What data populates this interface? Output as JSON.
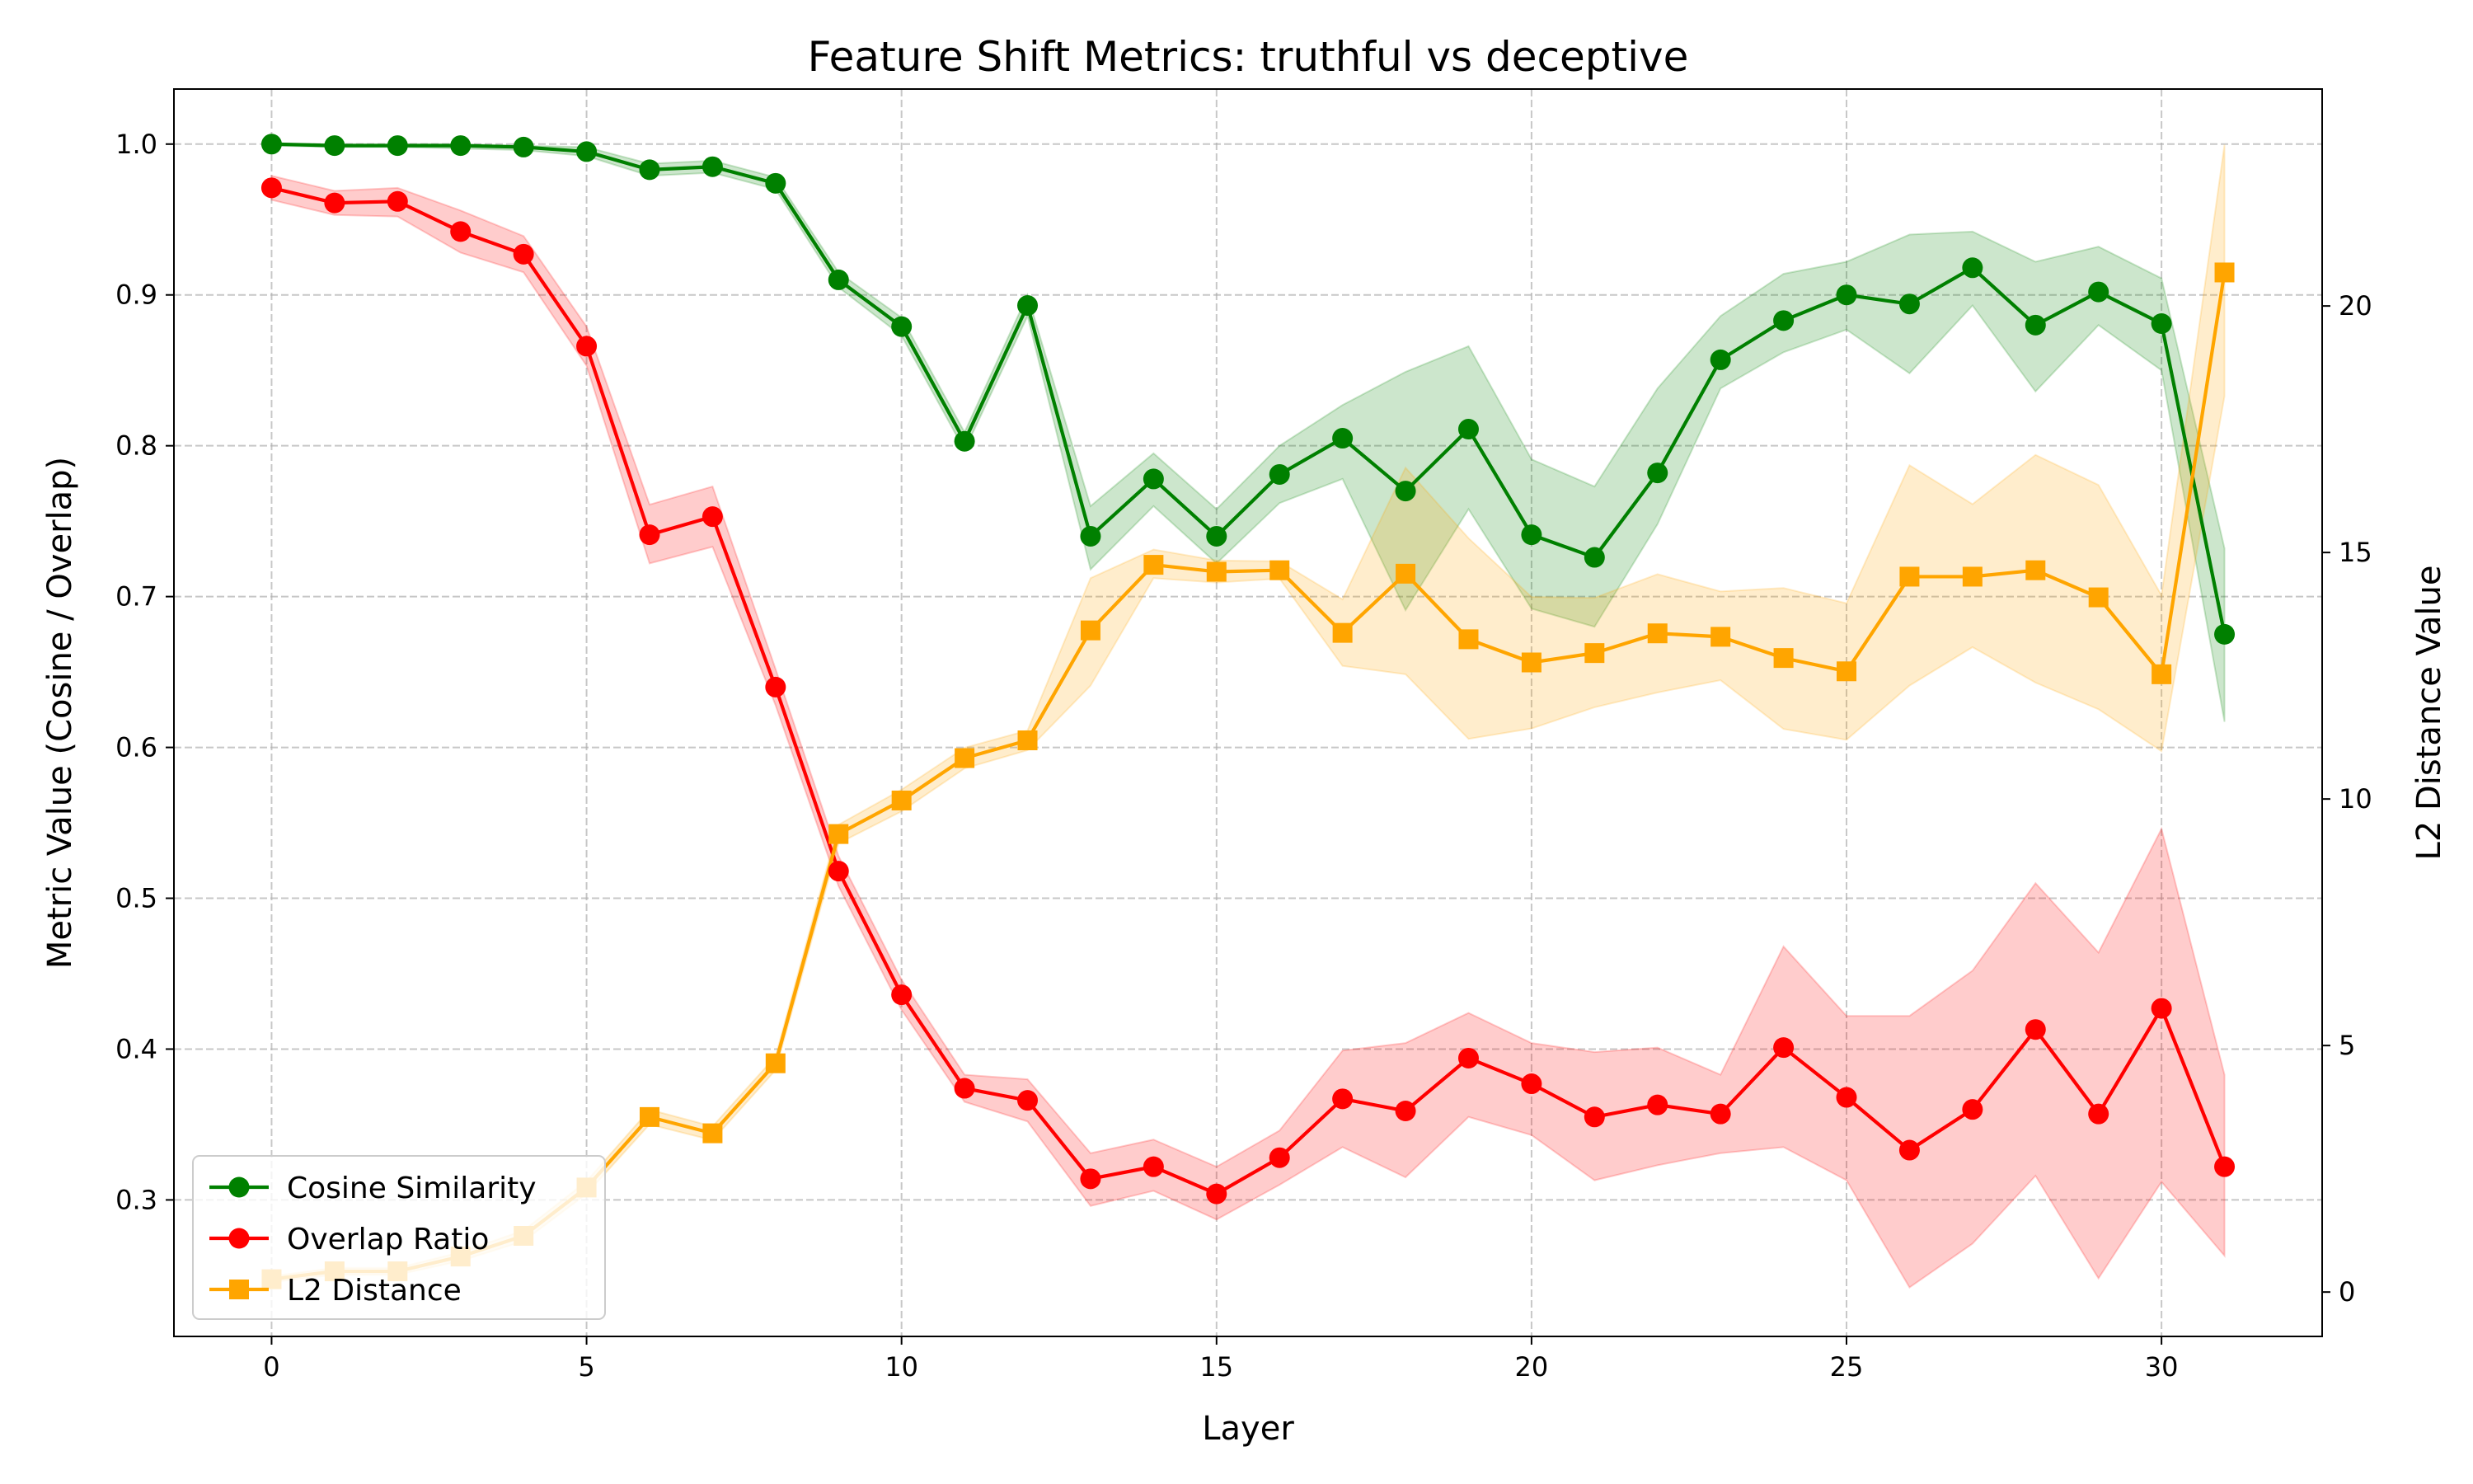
{
  "chart_data": {
    "type": "line",
    "title": "Feature Shift Metrics: truthful vs deceptive",
    "xlabel": "Layer",
    "ylabel": "Metric Value (Cosine / Overlap)",
    "y2label": "L2 Distance Value",
    "xlim": [
      -1.55,
      32.55
    ],
    "ylim": [
      0.2095,
      1.0365
    ],
    "y2lim": [
      -0.9,
      24.4
    ],
    "xticks": [
      0,
      5,
      10,
      15,
      20,
      25,
      30
    ],
    "yticks": [
      0.3,
      0.4,
      0.5,
      0.6,
      0.7,
      0.8,
      0.9,
      1.0
    ],
    "y2ticks": [
      0,
      5,
      10,
      15,
      20
    ],
    "grid": true,
    "legend_position": "lower-left",
    "x": [
      0,
      1,
      2,
      3,
      4,
      5,
      6,
      7,
      8,
      9,
      10,
      11,
      12,
      13,
      14,
      15,
      16,
      17,
      18,
      19,
      20,
      21,
      22,
      23,
      24,
      25,
      26,
      27,
      28,
      29,
      30,
      31
    ],
    "series": [
      {
        "name": "Cosine Similarity",
        "axis": "left",
        "color": "#008000",
        "marker": "circle",
        "values": [
          1.0,
          0.999,
          0.999,
          0.999,
          0.998,
          0.995,
          0.983,
          0.985,
          0.974,
          0.91,
          0.879,
          0.803,
          0.893,
          0.74,
          0.778,
          0.74,
          0.781,
          0.805,
          0.77,
          0.811,
          0.741,
          0.726,
          0.782,
          0.857,
          0.883,
          0.9,
          0.894,
          0.918,
          0.88,
          0.902,
          0.881,
          0.675
        ],
        "lower": [
          0.999,
          0.998,
          0.998,
          0.997,
          0.996,
          0.992,
          0.979,
          0.981,
          0.97,
          0.905,
          0.873,
          0.797,
          0.886,
          0.718,
          0.76,
          0.722,
          0.762,
          0.778,
          0.691,
          0.758,
          0.692,
          0.68,
          0.748,
          0.838,
          0.862,
          0.877,
          0.848,
          0.893,
          0.836,
          0.88,
          0.85,
          0.617
        ],
        "upper": [
          1.0,
          1.0,
          1.0,
          1.0,
          0.999,
          0.998,
          0.987,
          0.989,
          0.978,
          0.915,
          0.885,
          0.809,
          0.9,
          0.76,
          0.795,
          0.758,
          0.8,
          0.827,
          0.849,
          0.866,
          0.791,
          0.773,
          0.838,
          0.886,
          0.914,
          0.922,
          0.94,
          0.942,
          0.922,
          0.932,
          0.911,
          0.732
        ]
      },
      {
        "name": "Overlap Ratio",
        "axis": "left",
        "color": "#ff0000",
        "marker": "circle",
        "values": [
          0.971,
          0.961,
          0.962,
          0.942,
          0.927,
          0.866,
          0.741,
          0.753,
          0.64,
          0.518,
          0.436,
          0.374,
          0.366,
          0.314,
          0.322,
          0.304,
          0.328,
          0.367,
          0.359,
          0.394,
          0.377,
          0.355,
          0.363,
          0.357,
          0.401,
          0.368,
          0.333,
          0.36,
          0.413,
          0.357,
          0.427,
          0.322
        ],
        "lower": [
          0.963,
          0.953,
          0.952,
          0.928,
          0.915,
          0.853,
          0.722,
          0.733,
          0.628,
          0.508,
          0.426,
          0.365,
          0.352,
          0.296,
          0.306,
          0.287,
          0.31,
          0.335,
          0.315,
          0.355,
          0.343,
          0.313,
          0.323,
          0.331,
          0.335,
          0.313,
          0.242,
          0.271,
          0.316,
          0.248,
          0.312,
          0.263
        ],
        "upper": [
          0.979,
          0.969,
          0.971,
          0.956,
          0.939,
          0.879,
          0.761,
          0.773,
          0.652,
          0.528,
          0.446,
          0.383,
          0.38,
          0.331,
          0.34,
          0.322,
          0.346,
          0.399,
          0.404,
          0.424,
          0.404,
          0.398,
          0.401,
          0.383,
          0.468,
          0.422,
          0.422,
          0.452,
          0.51,
          0.464,
          0.546,
          0.383
        ]
      },
      {
        "name": "L2 Distance",
        "axis": "right",
        "color": "#ffa500",
        "marker": "square",
        "values": [
          0.26,
          0.42,
          0.42,
          0.72,
          1.14,
          2.12,
          3.55,
          3.22,
          4.64,
          9.29,
          9.97,
          10.83,
          11.19,
          13.42,
          14.75,
          14.61,
          14.64,
          13.37,
          14.57,
          13.24,
          12.77,
          12.96,
          13.36,
          13.29,
          12.86,
          12.59,
          14.51,
          14.51,
          14.64,
          14.09,
          12.53,
          20.68
        ],
        "lower": [
          0.2,
          0.35,
          0.35,
          0.63,
          1.03,
          1.99,
          3.4,
          3.08,
          4.5,
          9.1,
          9.75,
          10.62,
          10.99,
          12.3,
          14.48,
          14.39,
          14.47,
          12.7,
          12.53,
          11.22,
          11.43,
          11.86,
          12.16,
          12.41,
          11.42,
          11.2,
          12.3,
          13.08,
          12.36,
          11.82,
          10.97,
          18.17
        ],
        "upper": [
          0.32,
          0.49,
          0.49,
          0.81,
          1.25,
          2.25,
          3.7,
          3.36,
          4.78,
          9.48,
          10.19,
          11.04,
          11.39,
          14.48,
          15.06,
          14.84,
          14.82,
          14.05,
          16.72,
          15.29,
          14.1,
          14.08,
          14.56,
          14.21,
          14.28,
          13.97,
          16.77,
          15.98,
          16.98,
          16.37,
          14.13,
          23.27
        ]
      }
    ]
  }
}
